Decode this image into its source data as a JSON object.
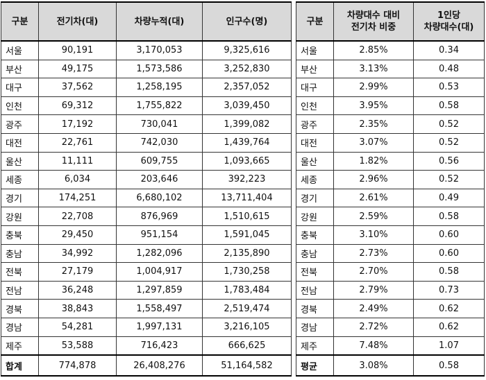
{
  "left_table": {
    "headers": [
      "구분",
      "전기차(대)",
      "차량누적(대)",
      "인구수(명)"
    ],
    "rows": [
      [
        "서울",
        "90,191",
        "3,170,053",
        "9,325,616"
      ],
      [
        "부산",
        "49,175",
        "1,573,586",
        "3,252,830"
      ],
      [
        "대구",
        "37,562",
        "1,258,195",
        "2,357,052"
      ],
      [
        "인천",
        "69,312",
        "1,755,822",
        "3,039,450"
      ],
      [
        "광주",
        "17,192",
        "730,041",
        "1,399,082"
      ],
      [
        "대전",
        "22,761",
        "742,030",
        "1,439,764"
      ],
      [
        "울산",
        "11,111",
        "609,755",
        "1,093,665"
      ],
      [
        "세종",
        "6,034",
        "203,646",
        "392,223"
      ],
      [
        "경기",
        "174,251",
        "6,680,102",
        "13,711,404"
      ],
      [
        "강원",
        "22,708",
        "876,969",
        "1,510,615"
      ],
      [
        "충북",
        "29,450",
        "951,154",
        "1,591,045"
      ],
      [
        "충남",
        "34,992",
        "1,282,096",
        "2,135,890"
      ],
      [
        "전북",
        "27,179",
        "1,004,917",
        "1,730,258"
      ],
      [
        "전남",
        "36,248",
        "1,297,859",
        "1,783,484"
      ],
      [
        "경북",
        "38,843",
        "1,558,497",
        "2,519,474"
      ],
      [
        "경남",
        "54,281",
        "1,997,131",
        "3,216,105"
      ],
      [
        "제주",
        "53,588",
        "716,423",
        "666,625"
      ]
    ],
    "total": [
      "합계",
      "774,878",
      "26,408,276",
      "51,164,582"
    ]
  },
  "right_table": {
    "headers": [
      "구분",
      "차량대수 대비\n전기차 비중",
      "1인당\n차량대수(대)"
    ],
    "rows": [
      [
        "서울",
        "2.85%",
        "0.34"
      ],
      [
        "부산",
        "3.13%",
        "0.48"
      ],
      [
        "대구",
        "2.99%",
        "0.53"
      ],
      [
        "인천",
        "3.95%",
        "0.58"
      ],
      [
        "광주",
        "2.35%",
        "0.52"
      ],
      [
        "대전",
        "3.07%",
        "0.52"
      ],
      [
        "울산",
        "1.82%",
        "0.56"
      ],
      [
        "세종",
        "2.96%",
        "0.52"
      ],
      [
        "경기",
        "2.61%",
        "0.49"
      ],
      [
        "강원",
        "2.59%",
        "0.58"
      ],
      [
        "충북",
        "3.10%",
        "0.60"
      ],
      [
        "충남",
        "2.73%",
        "0.60"
      ],
      [
        "전북",
        "2.70%",
        "0.58"
      ],
      [
        "전남",
        "2.79%",
        "0.73"
      ],
      [
        "경북",
        "2.49%",
        "0.62"
      ],
      [
        "경남",
        "2.72%",
        "0.62"
      ],
      [
        "제주",
        "7.48%",
        "1.07"
      ]
    ],
    "total": [
      "평균",
      "3.08%",
      "0.58"
    ]
  }
}
